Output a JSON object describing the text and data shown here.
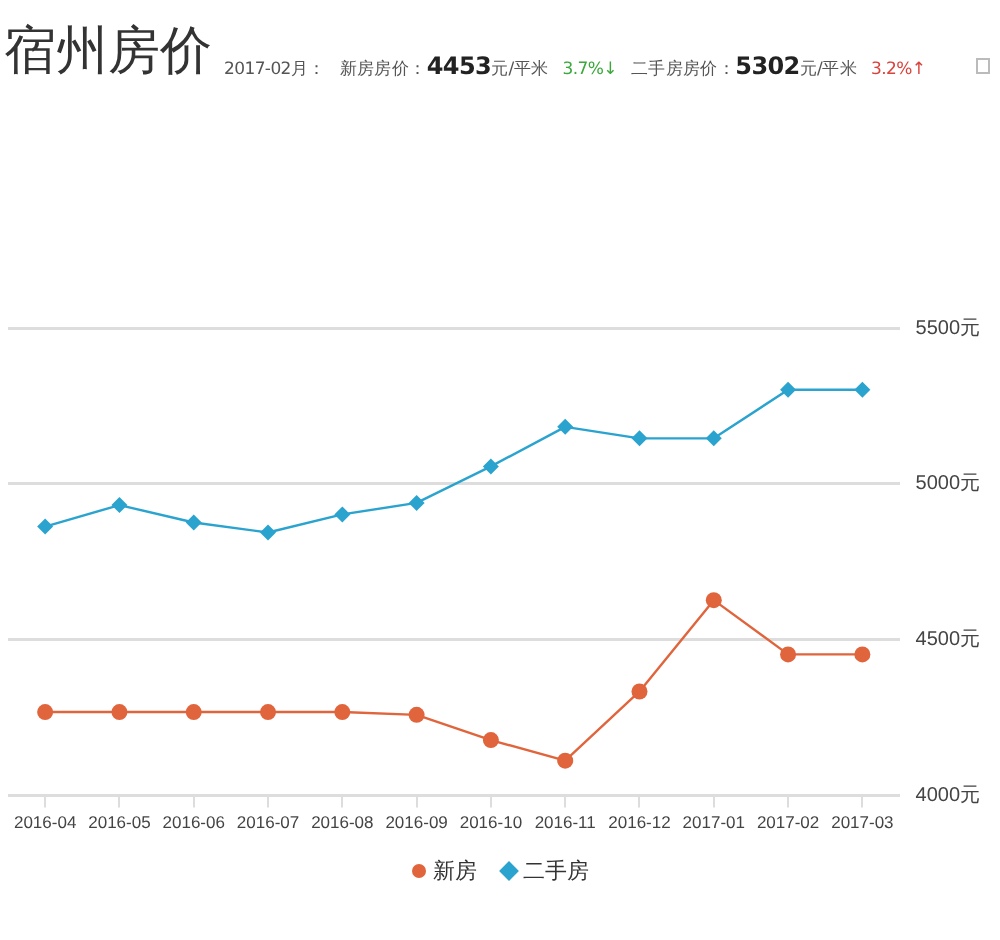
{
  "chart_data": {
    "type": "line",
    "title": "宿州房价",
    "annotations": [
      "2017-02月：",
      "新房房价：",
      "4453",
      "元/平米",
      "3.7%↓",
      "二手房房价：",
      "5302",
      "元/平米",
      "3.2%↑"
    ],
    "categories": [
      "2016-04",
      "2016-05",
      "2016-06",
      "2016-07",
      "2016-08",
      "2016-09",
      "2016-10",
      "2016-11",
      "2016-12",
      "2017-01",
      "2017-02",
      "2017-03"
    ],
    "series": [
      {
        "name": "新房",
        "color": "#e0643c",
        "marker": "circle",
        "values": [
          4268,
          4268,
          4268,
          4268,
          4268,
          4259,
          4178,
          4112,
          4334,
          4627,
          4453,
          4453
        ]
      },
      {
        "name": "二手房",
        "color": "#2ba3cf",
        "marker": "diamond",
        "values": [
          4863,
          4932,
          4876,
          4844,
          4902,
          4939,
          5056,
          5183,
          5146,
          5146,
          5302,
          5302
        ]
      }
    ],
    "ylim": [
      4000,
      5500
    ],
    "yticks": [
      {
        "value": 4000,
        "label": "4000元"
      },
      {
        "value": 4500,
        "label": "4500元"
      },
      {
        "value": 5000,
        "label": "5000元"
      },
      {
        "value": 5500,
        "label": "5500元"
      }
    ],
    "grid": "y",
    "legend": "bottom",
    "line_style": "solid"
  }
}
